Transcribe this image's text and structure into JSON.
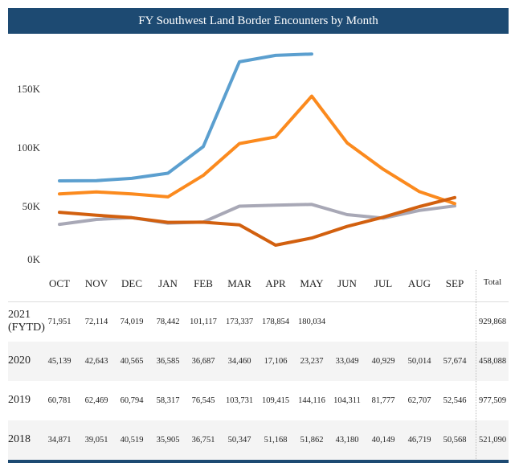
{
  "title": "FY Southwest Land Border Encounters by Month",
  "chart_data": {
    "type": "line",
    "title": "FY Southwest Land Border Encounters by Month",
    "categories": [
      "OCT",
      "NOV",
      "DEC",
      "JAN",
      "FEB",
      "MAR",
      "APR",
      "MAY",
      "JUN",
      "JUL",
      "AUG",
      "SEP"
    ],
    "y_ticks": [
      "0K",
      "50K",
      "100K",
      "150K"
    ],
    "ylim": [
      0,
      185000
    ],
    "grid": false,
    "series": [
      {
        "name": "2021 (FYTD)",
        "color": "#5b9fcf",
        "values": [
          71951,
          72114,
          74019,
          78442,
          101117,
          173337,
          178854,
          180034,
          null,
          null,
          null,
          null
        ],
        "total": "929,868"
      },
      {
        "name": "2020",
        "color": "#d2600f",
        "values": [
          45139,
          42643,
          40565,
          36585,
          36687,
          34460,
          17106,
          23237,
          33049,
          40929,
          50014,
          57674
        ],
        "total": "458,088"
      },
      {
        "name": "2019",
        "color": "#fb8a1e",
        "values": [
          60781,
          62469,
          60794,
          58317,
          76545,
          103731,
          109415,
          144116,
          104311,
          81777,
          62707,
          52546
        ],
        "total": "977,509"
      },
      {
        "name": "2018",
        "color": "#a8a8b6",
        "values": [
          34871,
          39051,
          40519,
          35905,
          36751,
          50347,
          51168,
          51862,
          43180,
          40149,
          46719,
          50568
        ],
        "total": "521,090"
      }
    ]
  },
  "table": {
    "total_header": "Total",
    "rows": [
      {
        "label_line1": "2021",
        "label_line2": "(FYTD)",
        "cells": [
          "71,951",
          "72,114",
          "74,019",
          "78,442",
          "101,117",
          "173,337",
          "178,854",
          "180,034",
          "",
          "",
          "",
          ""
        ],
        "total": "929,868"
      },
      {
        "label_line1": "2020",
        "label_line2": "",
        "cells": [
          "45,139",
          "42,643",
          "40,565",
          "36,585",
          "36,687",
          "34,460",
          "17,106",
          "23,237",
          "33,049",
          "40,929",
          "50,014",
          "57,674"
        ],
        "total": "458,088"
      },
      {
        "label_line1": "2019",
        "label_line2": "",
        "cells": [
          "60,781",
          "62,469",
          "60,794",
          "58,317",
          "76,545",
          "103,731",
          "109,415",
          "144,116",
          "104,311",
          "81,777",
          "62,707",
          "52,546"
        ],
        "total": "977,509"
      },
      {
        "label_line1": "2018",
        "label_line2": "",
        "cells": [
          "34,871",
          "39,051",
          "40,519",
          "35,905",
          "36,751",
          "50,347",
          "51,168",
          "51,862",
          "43,180",
          "40,149",
          "46,719",
          "50,568"
        ],
        "total": "521,090"
      }
    ]
  }
}
